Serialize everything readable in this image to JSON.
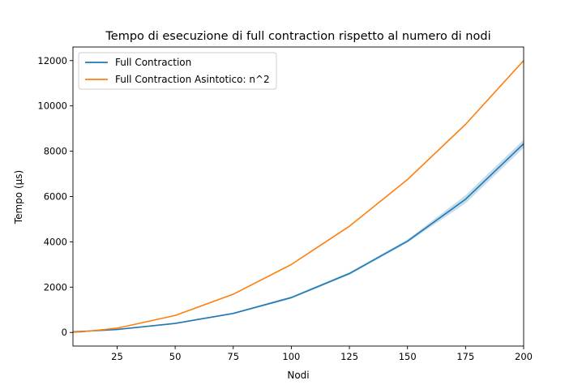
{
  "chart_data": {
    "type": "line",
    "title": "Tempo di esecuzione di full contraction rispetto al numero di nodi",
    "xlabel": "Nodi",
    "ylabel": "Tempo (µs)",
    "xlim": [
      6,
      200
    ],
    "ylim": [
      -600,
      12600
    ],
    "x_ticks": [
      25,
      50,
      75,
      100,
      125,
      150,
      175,
      200
    ],
    "y_ticks": [
      0,
      2000,
      4000,
      6000,
      8000,
      10000,
      12000
    ],
    "grid": false,
    "legend_position": "top-left",
    "x": [
      6,
      10,
      25,
      50,
      75,
      100,
      125,
      150,
      175,
      200
    ],
    "series": [
      {
        "name": "Full Contraction",
        "color": "#1f77b4",
        "values": [
          30,
          45,
          130,
          400,
          840,
          1540,
          2600,
          4030,
          5880,
          8330
        ],
        "band_low": [
          20,
          35,
          110,
          370,
          800,
          1490,
          2540,
          3960,
          5700,
          8150
        ],
        "band_high": [
          40,
          55,
          150,
          430,
          880,
          1590,
          2660,
          4100,
          6060,
          8510
        ]
      },
      {
        "name": "Full Contraction Asintotico: n^2",
        "color": "#ff7f0e",
        "values": [
          11,
          30,
          188,
          750,
          1688,
          3000,
          4688,
          6750,
          9188,
          12000
        ]
      }
    ]
  }
}
